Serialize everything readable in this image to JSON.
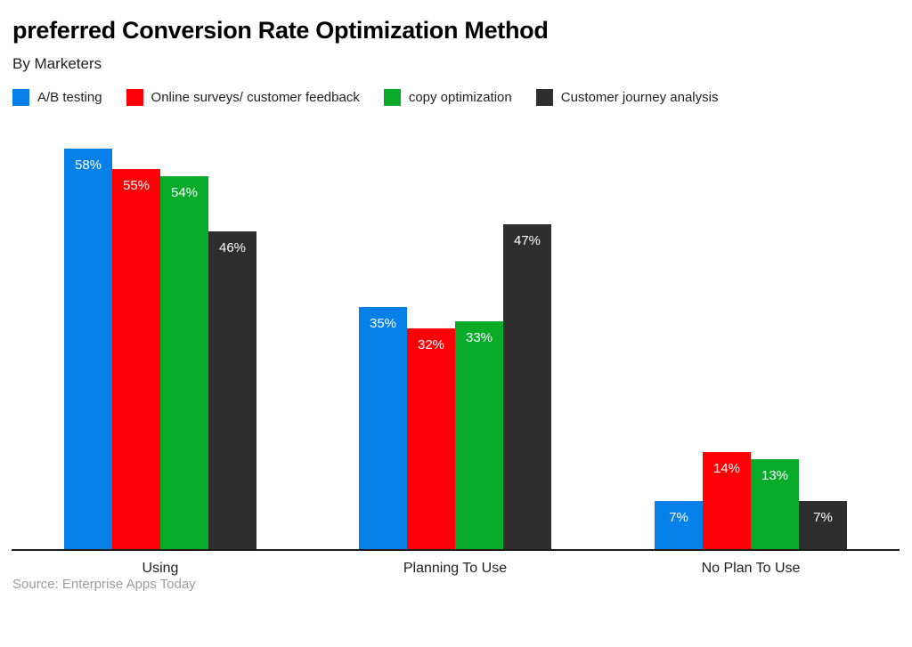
{
  "header": {
    "title": "preferred Conversion Rate Optimization Method",
    "subtitle": "By Marketers"
  },
  "footer": {
    "source": "Source: Enterprise Apps Today"
  },
  "chart_data": {
    "type": "bar",
    "title": "preferred Conversion Rate Optimization Method",
    "subtitle": "By Marketers",
    "categories": [
      "Using",
      "Planning To Use",
      "No Plan To Use"
    ],
    "series": [
      {
        "name": "A/B testing",
        "color": "#0680e9",
        "values": [
          58,
          35,
          7
        ]
      },
      {
        "name": "Online surveys/ customer feedback",
        "color": "#fb0105",
        "values": [
          55,
          32,
          14
        ]
      },
      {
        "name": "copy optimization",
        "color": "#08ac29",
        "values": [
          54,
          33,
          13
        ]
      },
      {
        "name": "Customer journey analysis",
        "color": "#2e2e2e",
        "values": [
          46,
          47,
          7
        ]
      }
    ],
    "value_suffix": "%",
    "ylim": [
      0,
      62
    ],
    "grid": false,
    "legend_position": "top",
    "bar_label_color": "#ffffff",
    "axis_line_color": "#1a1a1a"
  }
}
